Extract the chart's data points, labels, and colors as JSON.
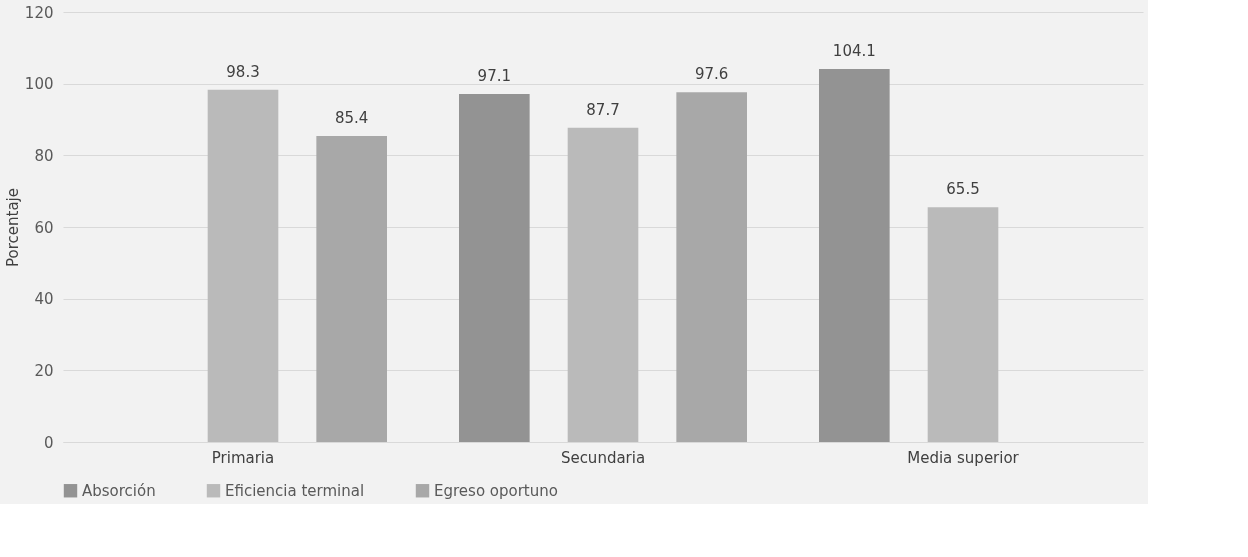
{
  "chart_data": {
    "type": "bar",
    "ylabel": "Porcentaje",
    "categories": [
      "Primaria",
      "Secundaria",
      "Media superior"
    ],
    "series": [
      {
        "name": "Absorción",
        "color": "#939393",
        "values": [
          null,
          97.1,
          104.1
        ]
      },
      {
        "name": "Eficiencia terminal",
        "color": "#bababa",
        "values": [
          98.3,
          87.7,
          65.5
        ]
      },
      {
        "name": "Egreso oportuno",
        "color": "#a8a8a8",
        "values": [
          85.4,
          97.6,
          null
        ]
      }
    ],
    "ylim": [
      0,
      120
    ],
    "yticks": [
      0,
      20,
      40,
      60,
      80,
      100,
      120
    ],
    "grid": "y",
    "legend": "bottom",
    "data_labels": true
  }
}
